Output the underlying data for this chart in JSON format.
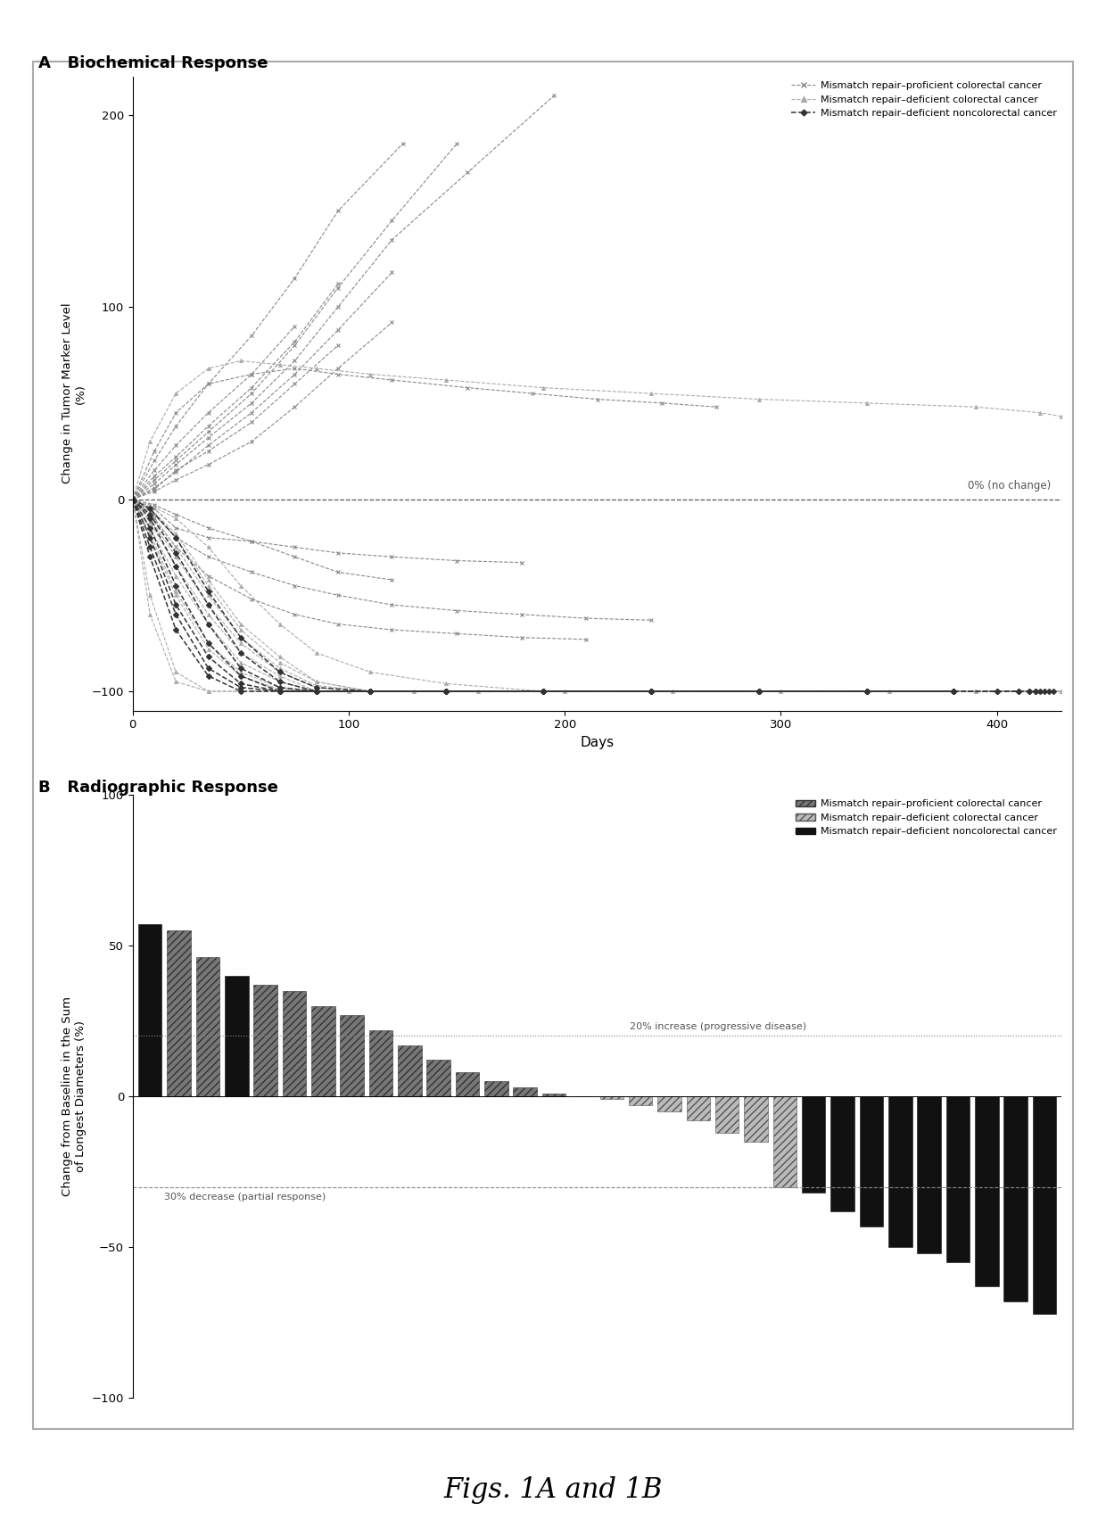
{
  "panel_A_title": "A   Biochemical Response",
  "panel_B_title": "B   Radiographic Response",
  "fig_caption": "Figs. 1A and 1B",
  "panel_A": {
    "xlabel": "Days",
    "ylabel": "Change in Tumor Marker Level\n(%)",
    "xlim": [
      0,
      430
    ],
    "ylim": [
      -110,
      220
    ],
    "yticks": [
      -100,
      0,
      100,
      200
    ],
    "xticks": [
      0,
      100,
      200,
      300,
      400
    ],
    "zero_line_label": "0% (no change)",
    "proficient_color": "#888888",
    "deficient_color": "#aaaaaa",
    "noncolorectal_color": "#333333",
    "legend_proficient": "Mismatch repair–proficient colorectal cancer",
    "legend_deficient": "Mismatch repair–deficient colorectal cancer",
    "legend_noncolorectal": "Mismatch repair–deficient noncolorectal cancer",
    "proficient_series": [
      {
        "x": [
          0,
          10,
          20,
          35,
          55,
          75,
          95
        ],
        "y": [
          0,
          5,
          15,
          25,
          40,
          60,
          80
        ]
      },
      {
        "x": [
          0,
          10,
          20,
          35,
          55,
          75,
          95,
          120,
          150
        ],
        "y": [
          0,
          10,
          20,
          35,
          55,
          80,
          110,
          145,
          185
        ]
      },
      {
        "x": [
          0,
          10,
          20,
          35,
          55,
          75,
          95,
          120,
          155,
          195
        ],
        "y": [
          0,
          8,
          18,
          32,
          50,
          72,
          100,
          135,
          170,
          210
        ]
      },
      {
        "x": [
          0,
          10,
          20,
          35,
          55,
          75,
          95
        ],
        "y": [
          0,
          12,
          22,
          38,
          58,
          82,
          112
        ]
      },
      {
        "x": [
          0,
          10,
          20,
          35,
          55,
          75,
          95,
          120
        ],
        "y": [
          0,
          6,
          14,
          28,
          45,
          65,
          88,
          118
        ]
      },
      {
        "x": [
          0,
          10,
          20,
          35,
          55,
          75,
          95,
          120
        ],
        "y": [
          0,
          4,
          10,
          18,
          30,
          48,
          68,
          92
        ]
      },
      {
        "x": [
          0,
          10,
          20,
          35,
          55,
          75
        ],
        "y": [
          0,
          15,
          28,
          45,
          65,
          90
        ]
      },
      {
        "x": [
          0,
          10,
          20,
          35,
          55,
          75,
          95,
          125
        ],
        "y": [
          0,
          20,
          38,
          60,
          85,
          115,
          150,
          185
        ]
      },
      {
        "x": [
          0,
          10,
          20,
          35,
          55,
          75,
          95,
          120,
          150,
          180
        ],
        "y": [
          0,
          -5,
          -15,
          -20,
          -22,
          -25,
          -28,
          -30,
          -32,
          -33
        ]
      },
      {
        "x": [
          0,
          10,
          20,
          35,
          55,
          75,
          95,
          120,
          150,
          180,
          210,
          240
        ],
        "y": [
          0,
          -8,
          -20,
          -30,
          -38,
          -45,
          -50,
          -55,
          -58,
          -60,
          -62,
          -63
        ]
      },
      {
        "x": [
          0,
          10,
          20,
          35,
          55,
          75,
          95,
          120,
          150,
          180,
          210
        ],
        "y": [
          0,
          -10,
          -25,
          -40,
          -52,
          -60,
          -65,
          -68,
          -70,
          -72,
          -73
        ]
      },
      {
        "x": [
          0,
          10,
          20,
          35,
          55,
          75,
          95,
          120
        ],
        "y": [
          0,
          -3,
          -8,
          -15,
          -22,
          -30,
          -38,
          -42
        ]
      },
      {
        "x": [
          0,
          10,
          20,
          35,
          55,
          75,
          95,
          120,
          155,
          185,
          215,
          245,
          270
        ],
        "y": [
          0,
          25,
          45,
          60,
          65,
          68,
          65,
          62,
          58,
          55,
          52,
          50,
          48
        ]
      }
    ],
    "deficient_series": [
      {
        "x": [
          0,
          8,
          20,
          35,
          50,
          68,
          85,
          100,
          130,
          160,
          200,
          250,
          300,
          340,
          380,
          410,
          430
        ],
        "y": [
          0,
          -10,
          -30,
          -55,
          -75,
          -90,
          -98,
          -100,
          -100,
          -100,
          -100,
          -100,
          -100,
          -100,
          -100,
          -100,
          -100
        ]
      },
      {
        "x": [
          0,
          8,
          20,
          35,
          50,
          68,
          85,
          110,
          145,
          190,
          240,
          290,
          350
        ],
        "y": [
          0,
          -15,
          -40,
          -65,
          -85,
          -95,
          -100,
          -100,
          -100,
          -100,
          -100,
          -100,
          -100
        ]
      },
      {
        "x": [
          0,
          8,
          20,
          35,
          50,
          68,
          85,
          110,
          145,
          190,
          240,
          290
        ],
        "y": [
          0,
          -8,
          -25,
          -50,
          -72,
          -88,
          -97,
          -100,
          -100,
          -100,
          -100,
          -100
        ]
      },
      {
        "x": [
          0,
          8,
          20,
          35,
          50,
          68,
          85,
          110,
          145,
          190,
          240
        ],
        "y": [
          0,
          -5,
          -18,
          -42,
          -65,
          -82,
          -95,
          -100,
          -100,
          -100,
          -100
        ]
      },
      {
        "x": [
          0,
          8,
          20,
          35,
          50,
          68,
          85,
          110,
          145,
          190,
          240,
          290,
          340
        ],
        "y": [
          0,
          -12,
          -35,
          -60,
          -80,
          -92,
          -100,
          -100,
          -100,
          -100,
          -100,
          -100,
          -100
        ]
      },
      {
        "x": [
          0,
          8,
          20,
          35,
          50,
          68,
          85,
          110,
          145,
          190,
          240,
          290
        ],
        "y": [
          0,
          -20,
          -50,
          -78,
          -92,
          -99,
          -100,
          -100,
          -100,
          -100,
          -100,
          -100
        ]
      },
      {
        "x": [
          0,
          8,
          20,
          35,
          50,
          68,
          85,
          110,
          145,
          190,
          240,
          290,
          340,
          390,
          430
        ],
        "y": [
          0,
          -6,
          -20,
          -45,
          -68,
          -85,
          -95,
          -100,
          -100,
          -100,
          -100,
          -100,
          -100,
          -100,
          -100
        ]
      },
      {
        "x": [
          0,
          8,
          20,
          35,
          50,
          68,
          85,
          110,
          145,
          190,
          240,
          290,
          340,
          390,
          420,
          430
        ],
        "y": [
          0,
          -18,
          -48,
          -75,
          -90,
          -98,
          -100,
          -100,
          -100,
          -100,
          -100,
          -100,
          -100,
          -100,
          -100,
          -100
        ]
      },
      {
        "x": [
          0,
          8,
          20,
          35,
          50,
          68,
          85,
          110,
          145,
          190,
          240,
          290,
          340,
          390,
          420,
          430
        ],
        "y": [
          0,
          -3,
          -10,
          -25,
          -45,
          -65,
          -80,
          -90,
          -96,
          -100,
          -100,
          -100,
          -100,
          -100,
          -100,
          -100
        ]
      },
      {
        "x": [
          0,
          8,
          20,
          35,
          50,
          68,
          85,
          110,
          145,
          190,
          240,
          290,
          340,
          390,
          420,
          430
        ],
        "y": [
          0,
          30,
          55,
          68,
          72,
          70,
          68,
          65,
          62,
          58,
          55,
          52,
          50,
          48,
          45,
          43
        ]
      },
      {
        "x": [
          0,
          8,
          20,
          35,
          50,
          68,
          85,
          110,
          145,
          190,
          240
        ],
        "y": [
          0,
          -50,
          -90,
          -100,
          -100,
          -100,
          -100,
          -100,
          -100,
          -100,
          -100
        ]
      },
      {
        "x": [
          0,
          8,
          20,
          35,
          50,
          68,
          85,
          110,
          145,
          190
        ],
        "y": [
          0,
          -60,
          -95,
          -100,
          -100,
          -100,
          -100,
          -100,
          -100,
          -100
        ]
      }
    ],
    "noncolorectal_series": [
      {
        "x": [
          0,
          8,
          20,
          35,
          50,
          68,
          85,
          110,
          145,
          190,
          240,
          290,
          340,
          380,
          400,
          410,
          415,
          418,
          420,
          422,
          424,
          426
        ],
        "y": [
          0,
          -15,
          -45,
          -75,
          -92,
          -100,
          -100,
          -100,
          -100,
          -100,
          -100,
          -100,
          -100,
          -100,
          -100,
          -100,
          -100,
          -100,
          -100,
          -100,
          -100,
          -100
        ]
      },
      {
        "x": [
          0,
          8,
          20,
          35,
          50,
          68,
          85,
          110,
          145,
          190,
          240,
          290
        ],
        "y": [
          0,
          -25,
          -60,
          -88,
          -98,
          -100,
          -100,
          -100,
          -100,
          -100,
          -100,
          -100
        ]
      },
      {
        "x": [
          0,
          8,
          20,
          35,
          50,
          68,
          85,
          110,
          145,
          190,
          240,
          290,
          340
        ],
        "y": [
          0,
          -10,
          -35,
          -65,
          -88,
          -98,
          -100,
          -100,
          -100,
          -100,
          -100,
          -100,
          -100
        ]
      },
      {
        "x": [
          0,
          8,
          20,
          35,
          50,
          68,
          85,
          110,
          145,
          190
        ],
        "y": [
          0,
          -8,
          -28,
          -55,
          -80,
          -95,
          -100,
          -100,
          -100,
          -100
        ]
      },
      {
        "x": [
          0,
          8,
          20,
          35,
          50,
          68,
          85,
          110,
          145,
          190,
          240,
          290,
          340,
          380,
          400,
          410,
          415,
          418
        ],
        "y": [
          0,
          -20,
          -55,
          -82,
          -96,
          -100,
          -100,
          -100,
          -100,
          -100,
          -100,
          -100,
          -100,
          -100,
          -100,
          -100,
          -100,
          -100
        ]
      },
      {
        "x": [
          0,
          8,
          20,
          35,
          50,
          68,
          85,
          110,
          145,
          190,
          240,
          290,
          340,
          380
        ],
        "y": [
          0,
          -5,
          -20,
          -48,
          -72,
          -90,
          -98,
          -100,
          -100,
          -100,
          -100,
          -100,
          -100,
          -100
        ]
      },
      {
        "x": [
          0,
          8,
          20,
          35,
          50,
          68,
          85,
          110,
          145,
          190,
          240,
          290,
          340,
          380
        ],
        "y": [
          0,
          -30,
          -68,
          -92,
          -100,
          -100,
          -100,
          -100,
          -100,
          -100,
          -100,
          -100,
          -100,
          -100
        ]
      }
    ]
  },
  "panel_B": {
    "ylabel": "Change from Baseline in the Sum\nof Longest Diameters (%)",
    "ylim": [
      -100,
      100
    ],
    "yticks": [
      -100,
      -50,
      0,
      50,
      100
    ],
    "progressive_disease_line": 20,
    "partial_response_line": -30,
    "progressive_label": "20% increase (progressive disease)",
    "partial_label": "30% decrease (partial response)",
    "bar_values": [
      57,
      55,
      46,
      40,
      37,
      35,
      30,
      27,
      22,
      17,
      12,
      8,
      5,
      3,
      1,
      0,
      -1,
      -3,
      -5,
      -8,
      -12,
      -15,
      -30,
      -32,
      -38,
      -43,
      -50,
      -52,
      -55,
      -63,
      -68,
      -72
    ],
    "bar_types": [
      2,
      0,
      0,
      2,
      0,
      0,
      0,
      0,
      0,
      0,
      0,
      0,
      0,
      0,
      0,
      0,
      1,
      1,
      1,
      1,
      1,
      1,
      1,
      2,
      2,
      2,
      2,
      2,
      2,
      2,
      2,
      2
    ],
    "legend_proficient": "Mismatch repair–proficient colorectal cancer",
    "legend_deficient": "Mismatch repair–deficient colorectal cancer",
    "legend_noncolorectal": "Mismatch repair–deficient noncolorectal cancer"
  }
}
